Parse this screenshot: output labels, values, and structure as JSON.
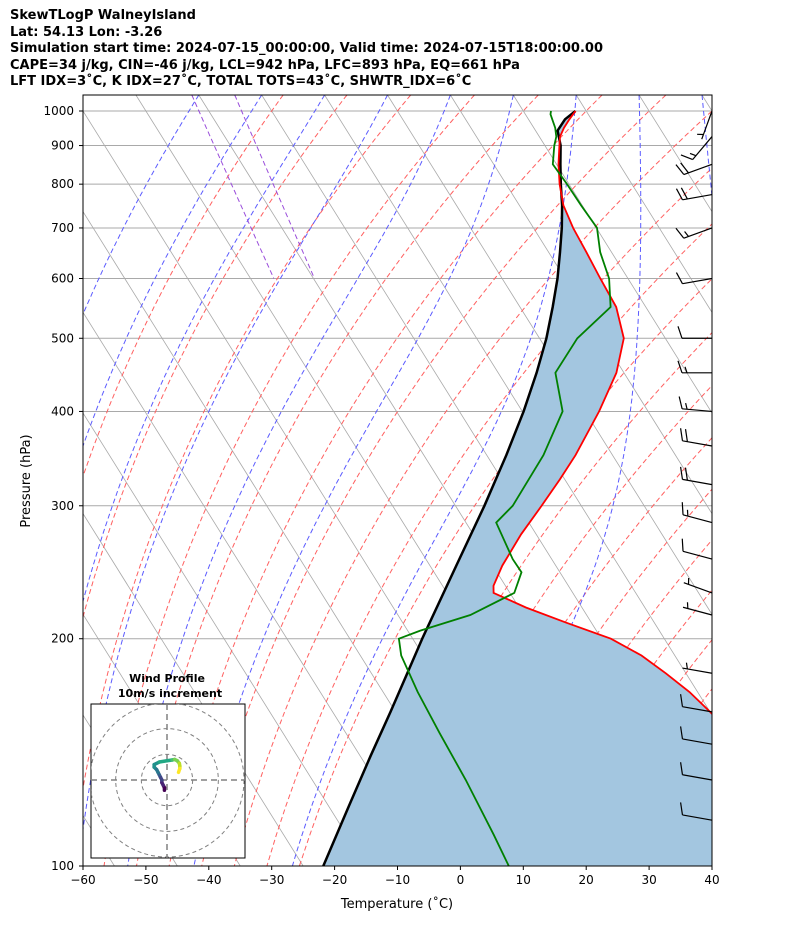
{
  "header": {
    "line1": "SkewTLogP WalneyIsland",
    "line2": "Lat: 54.13   Lon: -3.26",
    "line3": "Simulation start time: 2024-07-15_00:00:00, Valid time: 2024-07-15T18:00:00.00",
    "line4": "CAPE=34 j/kg, CIN=-46 j/kg, LCL=942 hPa, LFC=893 hPa, EQ=661 hPa",
    "line5": "LFT IDX=3˚C, K IDX=27˚C, TOTAL TOTS=43˚C, SHWTR_IDX=6˚C"
  },
  "chart_data": {
    "type": "line",
    "xlabel": "Temperature (˚C)",
    "ylabel": "Pressure (hPa)",
    "xlim": [
      -60,
      40
    ],
    "ylim": [
      1050,
      100
    ],
    "y_scale": "log",
    "skew_per_decade_degC": 75,
    "x_ticks": [
      -60,
      -50,
      -40,
      -30,
      -20,
      -10,
      0,
      10,
      20,
      30,
      40
    ],
    "x_tick_labels": [
      "−60",
      "−50",
      "−40",
      "−30",
      "−20",
      "−10",
      "0",
      "10",
      "20",
      "30",
      "40"
    ],
    "y_ticks": [
      1000,
      900,
      800,
      700,
      600,
      500,
      400,
      300,
      200,
      100
    ],
    "y_tick_labels": [
      "1000",
      "900",
      "800",
      "700",
      "600",
      "500",
      "400",
      "300",
      "200",
      "100"
    ],
    "grid": true,
    "colors": {
      "temperature": "#ff0000",
      "dewpoint": "#008000",
      "parcel": "#000000",
      "cape_fill": "#a3c6e0",
      "dry_adiabat": "#ff6060",
      "moist_adiabat": "#5b5bff",
      "mixing_ratio": "#9a4ddb",
      "isotherm": "#a9a9a9"
    },
    "series": [
      {
        "role": "temperature",
        "points": [
          [
            1000,
            18.3
          ],
          [
            975,
            16.5
          ],
          [
            950,
            14.8
          ],
          [
            925,
            13.3
          ],
          [
            900,
            12.3
          ],
          [
            850,
            10.3
          ],
          [
            800,
            8.5
          ],
          [
            750,
            7.0
          ],
          [
            700,
            6.3
          ],
          [
            650,
            6.0
          ],
          [
            600,
            5.6
          ],
          [
            550,
            5.3
          ],
          [
            500,
            3.4
          ],
          [
            450,
            -1.2
          ],
          [
            400,
            -7.8
          ],
          [
            350,
            -15.9
          ],
          [
            325,
            -20.8
          ],
          [
            300,
            -26.3
          ],
          [
            275,
            -32.4
          ],
          [
            250,
            -38.5
          ],
          [
            235,
            -41.9
          ],
          [
            230,
            -42.6
          ],
          [
            220,
            -38.9
          ],
          [
            210,
            -34.0
          ],
          [
            200,
            -28.5
          ],
          [
            190,
            -25.3
          ],
          [
            180,
            -23.2
          ],
          [
            170,
            -21.3
          ],
          [
            160,
            -20.0
          ],
          [
            150,
            -18.8
          ],
          [
            140,
            -17.6
          ],
          [
            130,
            -16.4
          ],
          [
            120,
            -14.9
          ],
          [
            110,
            -13.8
          ],
          [
            100,
            -13.2
          ]
        ]
      },
      {
        "role": "dewpoint",
        "points": [
          [
            1000,
            14.4
          ],
          [
            990,
            14.0
          ],
          [
            950,
            13.4
          ],
          [
            925,
            12.7
          ],
          [
            900,
            11.5
          ],
          [
            850,
            9.4
          ],
          [
            800,
            9.7
          ],
          [
            750,
            9.8
          ],
          [
            700,
            10.1
          ],
          [
            650,
            8.2
          ],
          [
            600,
            7.0
          ],
          [
            550,
            4.4
          ],
          [
            500,
            -4.0
          ],
          [
            450,
            -10.9
          ],
          [
            400,
            -13.6
          ],
          [
            350,
            -21.0
          ],
          [
            300,
            -30.9
          ],
          [
            285,
            -35.2
          ],
          [
            255,
            -36.2
          ],
          [
            245,
            -36.1
          ],
          [
            230,
            -39.3
          ],
          [
            215,
            -48.5
          ],
          [
            205,
            -58.0
          ],
          [
            200,
            -62.2
          ],
          [
            190,
            -63.5
          ],
          [
            170,
            -64.5
          ],
          [
            150,
            -65.1
          ],
          [
            130,
            -65.6
          ],
          [
            110,
            -66.6
          ],
          [
            100,
            -67.3
          ]
        ]
      },
      {
        "role": "parcel",
        "points": [
          [
            1000,
            18.3
          ],
          [
            975,
            15.8
          ],
          [
            942,
            13.5
          ],
          [
            900,
            12.5
          ],
          [
            850,
            10.6
          ],
          [
            800,
            8.7
          ],
          [
            750,
            6.8
          ],
          [
            700,
            4.5
          ],
          [
            650,
            1.8
          ],
          [
            600,
            -1.2
          ],
          [
            550,
            -4.8
          ],
          [
            500,
            -8.9
          ],
          [
            450,
            -13.9
          ],
          [
            400,
            -19.8
          ],
          [
            350,
            -26.9
          ],
          [
            300,
            -35.4
          ],
          [
            250,
            -45.8
          ],
          [
            200,
            -58.5
          ],
          [
            180,
            -64.3
          ],
          [
            160,
            -70.8
          ],
          [
            140,
            -78.3
          ],
          [
            120,
            -86.8
          ],
          [
            100,
            -96.8
          ]
        ]
      }
    ],
    "wind_barbs": [
      {
        "p": 1000,
        "speed_kt": 5,
        "dir_deg": 200
      },
      {
        "p": 925,
        "speed_kt": 15,
        "dir_deg": 220
      },
      {
        "p": 850,
        "speed_kt": 20,
        "dir_deg": 250
      },
      {
        "p": 775,
        "speed_kt": 20,
        "dir_deg": 260
      },
      {
        "p": 700,
        "speed_kt": 15,
        "dir_deg": 250
      },
      {
        "p": 600,
        "speed_kt": 10,
        "dir_deg": 260
      },
      {
        "p": 500,
        "speed_kt": 10,
        "dir_deg": 270
      },
      {
        "p": 450,
        "speed_kt": 15,
        "dir_deg": 270
      },
      {
        "p": 400,
        "speed_kt": 15,
        "dir_deg": 275
      },
      {
        "p": 360,
        "speed_kt": 20,
        "dir_deg": 280
      },
      {
        "p": 320,
        "speed_kt": 20,
        "dir_deg": 280
      },
      {
        "p": 285,
        "speed_kt": 15,
        "dir_deg": 285
      },
      {
        "p": 255,
        "speed_kt": 10,
        "dir_deg": 285
      },
      {
        "p": 230,
        "speed_kt": 5,
        "dir_deg": 290
      },
      {
        "p": 215,
        "speed_kt": 5,
        "dir_deg": 285
      },
      {
        "p": 180,
        "speed_kt": 5,
        "dir_deg": 280
      },
      {
        "p": 160,
        "speed_kt": 10,
        "dir_deg": 280
      },
      {
        "p": 145,
        "speed_kt": 10,
        "dir_deg": 280
      },
      {
        "p": 130,
        "speed_kt": 10,
        "dir_deg": 280
      },
      {
        "p": 115,
        "speed_kt": 10,
        "dir_deg": 280
      }
    ],
    "hodograph": {
      "title": "Wind Profile",
      "subtitle": "10m/s increment",
      "ring_step_ms": 10,
      "rings": 3,
      "range_ms": 30,
      "points": [
        [
          -1,
          -4
        ],
        [
          -1,
          -3
        ],
        [
          -1.5,
          -2
        ],
        [
          -2,
          -1
        ],
        [
          -2,
          0
        ],
        [
          -2.5,
          1
        ],
        [
          -3,
          2
        ],
        [
          -3.5,
          3
        ],
        [
          -4,
          4
        ],
        [
          -5,
          5
        ],
        [
          -5,
          6
        ],
        [
          -3,
          7
        ],
        [
          0,
          7.5
        ],
        [
          2,
          7.8
        ],
        [
          3,
          8
        ],
        [
          4,
          7.5
        ],
        [
          4.8,
          6.5
        ],
        [
          5,
          5.5
        ],
        [
          5,
          4.5
        ],
        [
          4.5,
          3
        ]
      ]
    }
  }
}
